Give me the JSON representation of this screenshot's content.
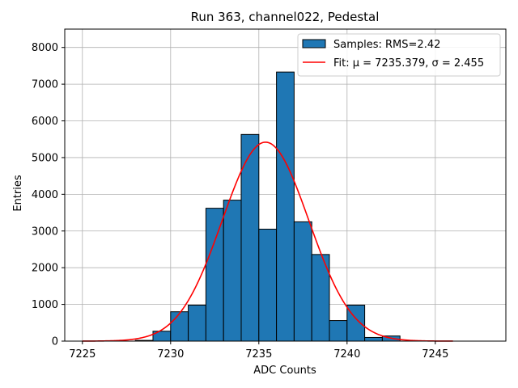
{
  "chart_data": {
    "type": "bar",
    "title": "Run 363, channel022, Pedestal",
    "xlabel": "ADC Counts",
    "ylabel": "Entries",
    "xlim": [
      7224,
      7249
    ],
    "ylim": [
      0,
      8500
    ],
    "xticks": [
      7225,
      7230,
      7235,
      7240,
      7245
    ],
    "yticks": [
      0,
      1000,
      2000,
      3000,
      4000,
      5000,
      6000,
      7000,
      8000
    ],
    "grid": true,
    "legend_position": "top-right",
    "bin_width": 1,
    "bins": [
      {
        "x": 7228,
        "count": 20
      },
      {
        "x": 7229,
        "count": 270
      },
      {
        "x": 7230,
        "count": 800
      },
      {
        "x": 7231,
        "count": 980
      },
      {
        "x": 7232,
        "count": 3620
      },
      {
        "x": 7233,
        "count": 3840
      },
      {
        "x": 7234,
        "count": 5630
      },
      {
        "x": 7235,
        "count": 3050
      },
      {
        "x": 7236,
        "count": 7330
      },
      {
        "x": 7237,
        "count": 3250
      },
      {
        "x": 7238,
        "count": 2360
      },
      {
        "x": 7239,
        "count": 560
      },
      {
        "x": 7240,
        "count": 980
      },
      {
        "x": 7241,
        "count": 100
      },
      {
        "x": 7242,
        "count": 140
      }
    ],
    "series": [
      {
        "name": "Samples: RMS=2.42",
        "kind": "histogram",
        "color": "#1f77b4",
        "edgecolor": "#000000"
      },
      {
        "name": "Fit: μ = 7235.379, σ = 2.455",
        "kind": "gaussian",
        "color": "#ff0000",
        "mu": 7235.379,
        "sigma": 2.455,
        "amplitude": 5420,
        "x_range": [
          7225,
          7246
        ]
      }
    ]
  }
}
